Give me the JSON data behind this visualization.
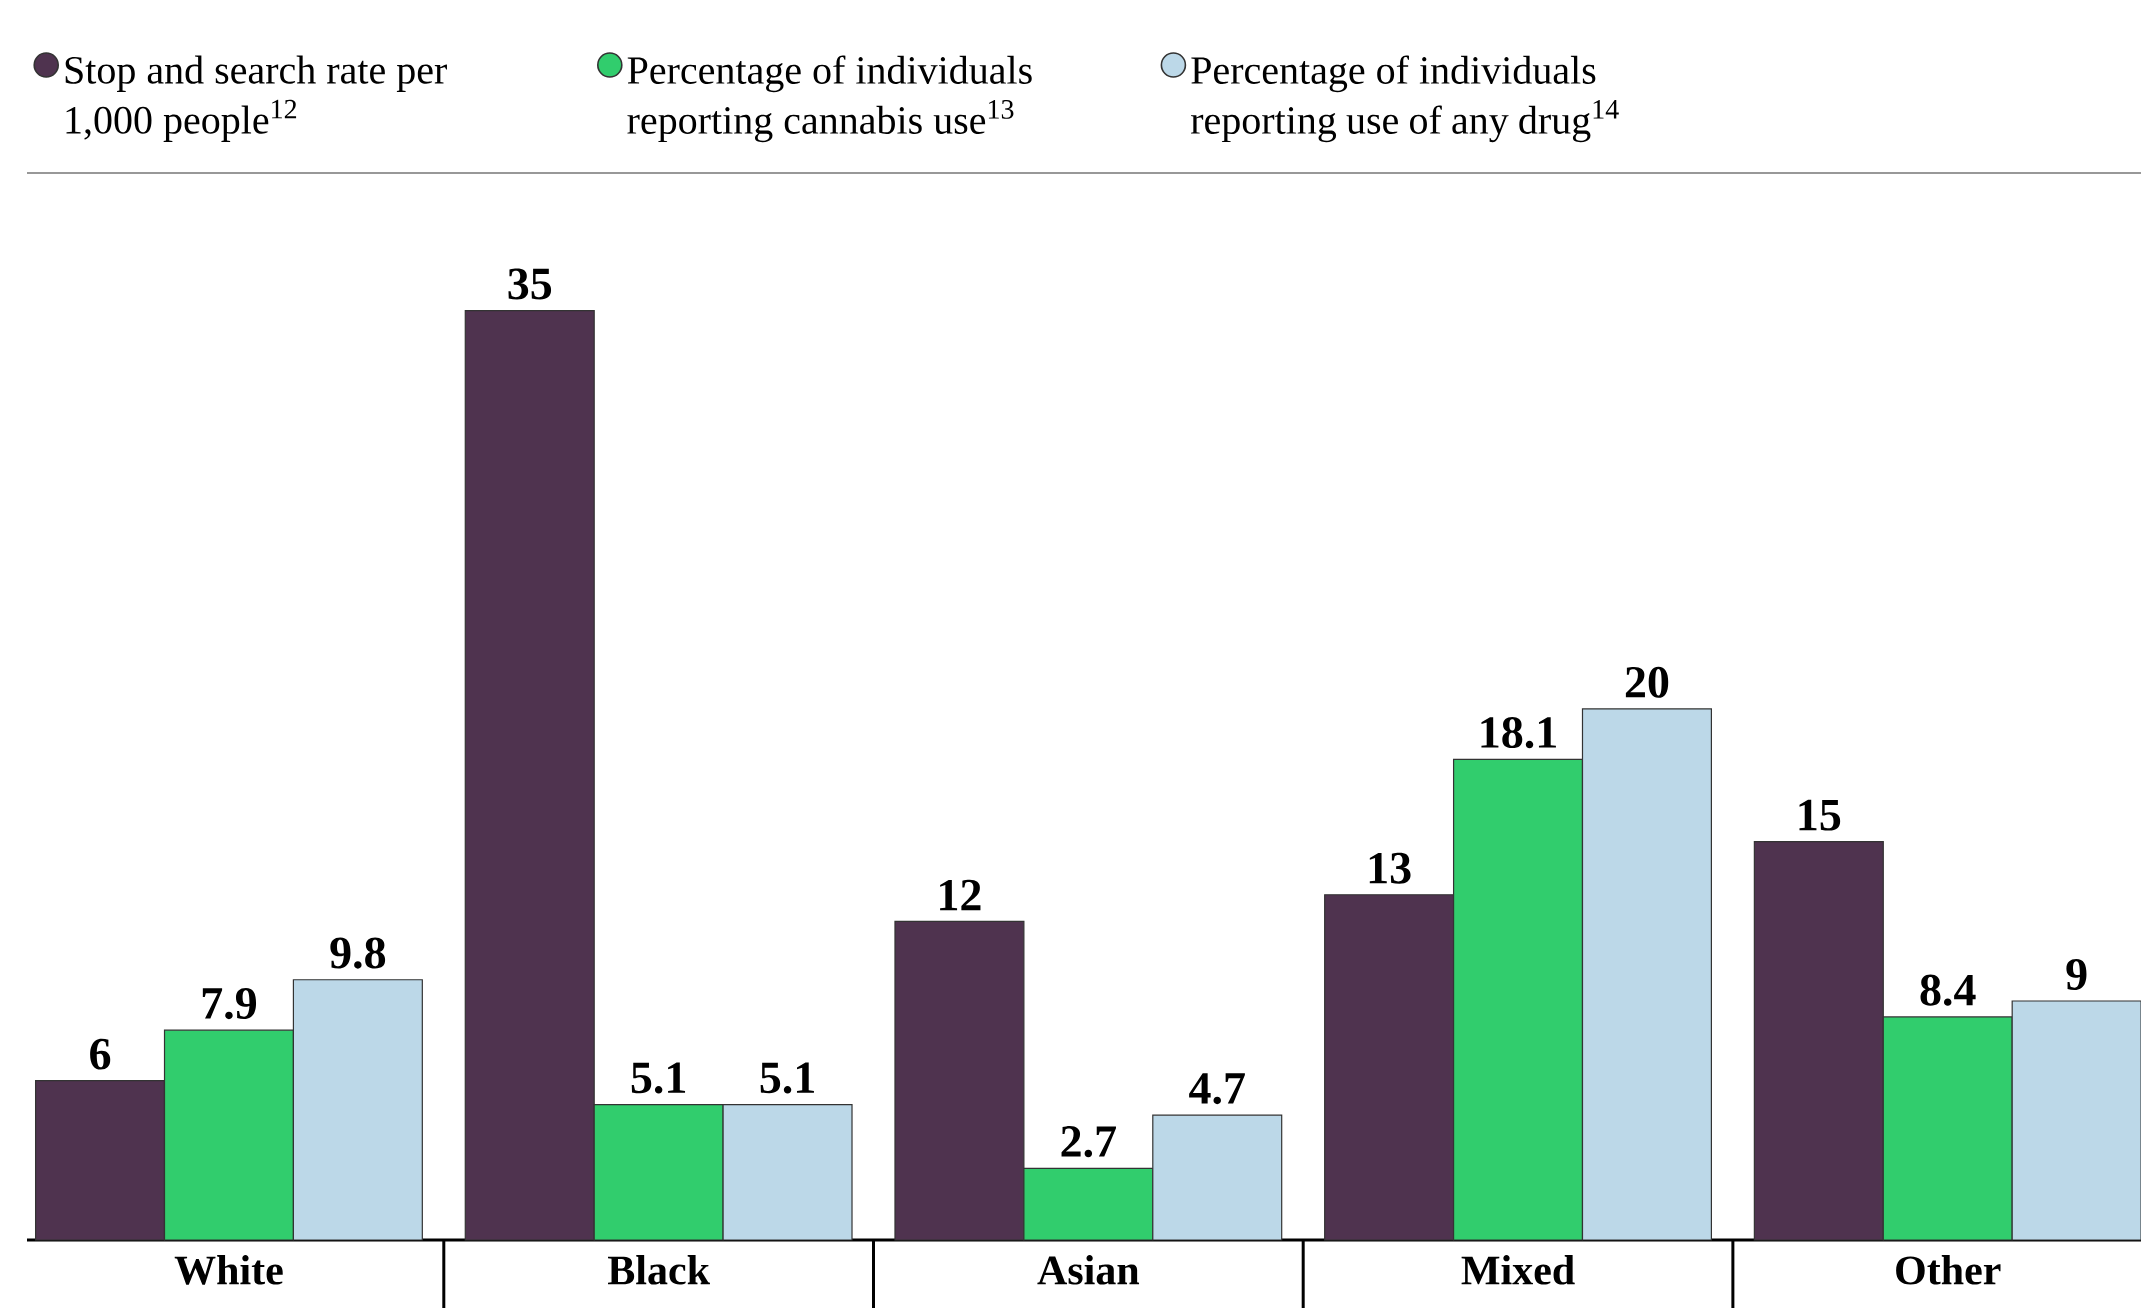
{
  "chart_data": {
    "type": "bar",
    "categories": [
      "White",
      "Black",
      "Asian",
      "Mixed",
      "Other"
    ],
    "series": [
      {
        "name": "Stop and search rate per 1,000 people$^{12}$",
        "color": "#4f334f",
        "values": [
          6,
          35,
          12,
          13,
          15
        ]
      },
      {
        "name": "Percentage of individuals reporting cannabis use$^{13}$",
        "color": "#31cd6d",
        "values": [
          7.9,
          5.1,
          2.7,
          18.1,
          8.4
        ]
      },
      {
        "name": "Percentage of individuals reporting use of any drug$^{14}$",
        "color": "#bcd8e8",
        "values": [
          9.8,
          5.1,
          4.7,
          20,
          9
        ]
      }
    ],
    "data_labels": true,
    "legend": "top"
  }
}
